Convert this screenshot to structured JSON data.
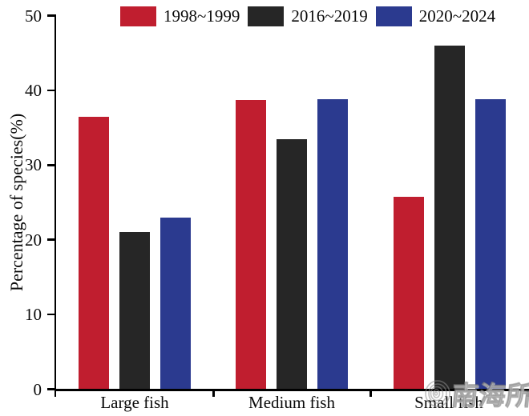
{
  "chart_data": {
    "type": "bar",
    "title": "",
    "categories": [
      "Large fish",
      "Medium fish",
      "Small fish"
    ],
    "series": [
      {
        "name": "1998~1999",
        "color": "#c01e2f",
        "values": [
          36.5,
          38.7,
          25.7
        ]
      },
      {
        "name": "2016~2019",
        "color": "#262626",
        "values": [
          21.0,
          33.5,
          46.0
        ]
      },
      {
        "name": "2020~2024",
        "color": "#2b3a8f",
        "values": [
          23.0,
          38.8,
          38.8
        ]
      }
    ],
    "xlabel": "",
    "ylabel": "Percentage of species(%)",
    "ylim": [
      0,
      50
    ],
    "yticks": [
      0,
      10,
      20,
      30,
      40,
      50
    ],
    "grid": false,
    "legend_position": "top"
  },
  "watermark": {
    "icon": "spiral-shell-logo",
    "text": "南海所"
  }
}
